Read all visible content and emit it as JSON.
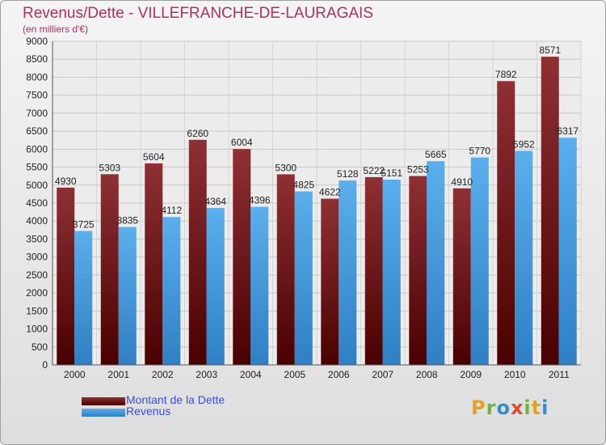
{
  "title": "Revenus/Dette - VILLEFRANCHE-DE-LAURAGAIS",
  "subtitle": "(en milliers d'€)",
  "logo": {
    "text": "Proxiti",
    "letters": [
      {
        "ch": "P",
        "color": "#e8a21a"
      },
      {
        "ch": "r",
        "color": "#6db33f"
      },
      {
        "ch": "o",
        "color": "#2f8fd0"
      },
      {
        "ch": "x",
        "color": "#e24b2a"
      },
      {
        "ch": "i",
        "color": "#6db33f"
      },
      {
        "ch": "t",
        "color": "#e8a21a"
      },
      {
        "ch": "i",
        "color": "#2f8fd0"
      }
    ]
  },
  "legend": {
    "placement": "bottom-left",
    "items": [
      {
        "label": "Montant de la Dette",
        "color": "#7a1f22"
      },
      {
        "label": "Revenus",
        "color": "#4a9fe0"
      }
    ]
  },
  "chart_data": {
    "type": "bar",
    "title": "Revenus/Dette - VILLEFRANCHE-DE-LAURAGAIS",
    "subtitle": "(en milliers d'€)",
    "categories": [
      "2000",
      "2001",
      "2002",
      "2003",
      "2004",
      "2005",
      "2006",
      "2007",
      "2008",
      "2009",
      "2010",
      "2011"
    ],
    "series": [
      {
        "name": "Montant de la Dette",
        "color": "#7a1f22",
        "values": [
          4930,
          5303,
          5604,
          6260,
          6004,
          5300,
          4622,
          5222,
          5253,
          4910,
          7892,
          8571
        ]
      },
      {
        "name": "Revenus",
        "color": "#4a9fe0",
        "values": [
          3725,
          3835,
          4112,
          4364,
          4396,
          4825,
          5128,
          5151,
          5665,
          5770,
          5952,
          6317
        ]
      }
    ],
    "ylim": [
      0,
      9000
    ],
    "yticks": [
      0,
      500,
      1000,
      1500,
      2000,
      2500,
      3000,
      3500,
      4000,
      4500,
      5000,
      5500,
      6000,
      6500,
      7000,
      7500,
      8000,
      8500,
      9000
    ],
    "grid": true,
    "legend_placement": "bottom-left",
    "xlabel": "",
    "ylabel": ""
  }
}
